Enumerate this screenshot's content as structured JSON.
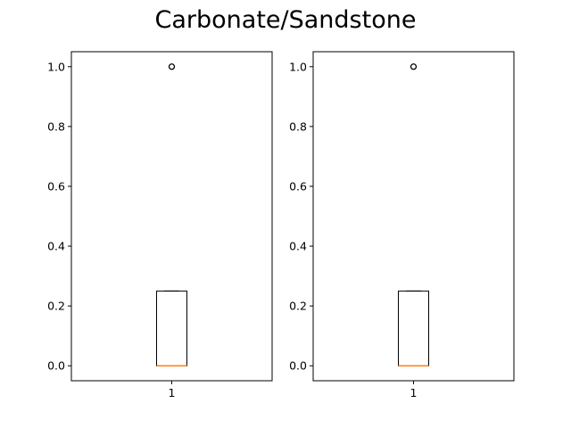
{
  "figure": {
    "title": "Carbonate/Sandstone"
  },
  "chart_data": [
    {
      "type": "box",
      "title": "",
      "xlabel": "",
      "ylabel": "",
      "categories": [
        "1"
      ],
      "ylim": [
        -0.05,
        1.05
      ],
      "yticks": [
        0.0,
        0.2,
        0.4,
        0.6,
        0.8,
        1.0
      ],
      "ytick_labels": [
        "0.0",
        "0.2",
        "0.4",
        "0.6",
        "0.8",
        "1.0"
      ],
      "boxes": [
        {
          "label": "1",
          "whisker_low": 0.0,
          "q1": 0.0,
          "median": 0.0,
          "q3": 0.25,
          "whisker_high": 0.25,
          "fliers": [
            1.0
          ]
        }
      ],
      "grid": false,
      "colors": {
        "box": "#000000",
        "median": "#ff7f0e",
        "flier": "#000000"
      }
    },
    {
      "type": "box",
      "title": "",
      "xlabel": "",
      "ylabel": "",
      "categories": [
        "1"
      ],
      "ylim": [
        -0.05,
        1.05
      ],
      "yticks": [
        0.0,
        0.2,
        0.4,
        0.6,
        0.8,
        1.0
      ],
      "ytick_labels": [
        "0.0",
        "0.2",
        "0.4",
        "0.6",
        "0.8",
        "1.0"
      ],
      "boxes": [
        {
          "label": "1",
          "whisker_low": 0.0,
          "q1": 0.0,
          "median": 0.0,
          "q3": 0.25,
          "whisker_high": 0.25,
          "fliers": [
            1.0
          ]
        }
      ],
      "grid": false,
      "colors": {
        "box": "#000000",
        "median": "#ff7f0e",
        "flier": "#000000"
      }
    }
  ]
}
